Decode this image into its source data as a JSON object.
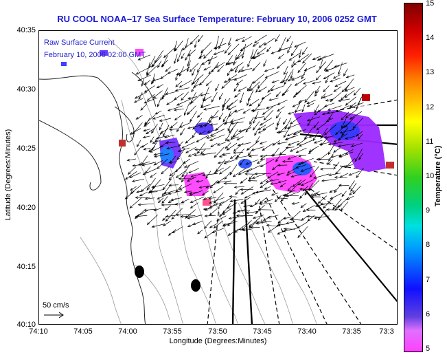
{
  "title": "RU COOL  NOAA–17  Sea Surface Temperature:  February 10, 2006 0252 GMT",
  "legend": {
    "line1": "Raw Surface Current",
    "line2": "February 10, 2006 02:00  GMT"
  },
  "scale_label": "50 cm/s",
  "x_axis": {
    "label": "Longitude (Degrees:Minutes)",
    "ticks": [
      "74:10",
      "74:05",
      "74:00",
      "73:55",
      "73:50",
      "73:45",
      "73:40",
      "73:35",
      "73:3"
    ]
  },
  "y_axis": {
    "label": "Latitude (Degrees:Minutes)",
    "ticks": [
      "40:35",
      "40:30",
      "40:25",
      "40:20",
      "40:15",
      "40:10"
    ]
  },
  "colorbar": {
    "label": "Temperature (°C)",
    "ticks": [
      "15",
      "14",
      "13",
      "12",
      "11",
      "10",
      "9",
      "8",
      "7",
      "6",
      "5"
    ]
  },
  "colors": {
    "title": "#1a1ad8",
    "legend_text": "#2222cc"
  }
}
